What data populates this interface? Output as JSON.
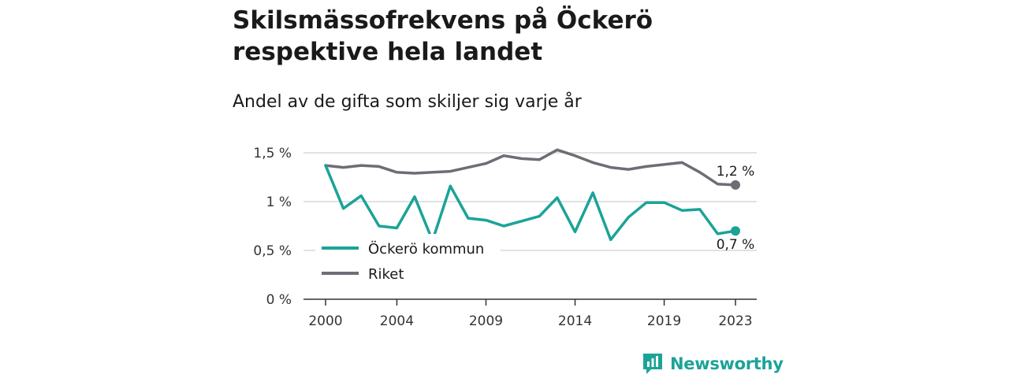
{
  "header": {
    "title": "Skilsmässofrekvens på Öckerö respektive hela landet",
    "subtitle": "Andel av de gifta som skiljer sig varje år"
  },
  "brand": {
    "name": "Newsworthy",
    "color": "#1ba398",
    "icon": "newsworthy-logo-icon"
  },
  "chart_data": {
    "type": "line",
    "title": "Skilsmässofrekvens på Öckerö respektive hela landet",
    "subtitle": "Andel av de gifta som skiljer sig varje år",
    "x": [
      2000,
      2001,
      2002,
      2003,
      2004,
      2005,
      2006,
      2007,
      2008,
      2009,
      2010,
      2011,
      2012,
      2013,
      2014,
      2015,
      2016,
      2017,
      2018,
      2019,
      2020,
      2021,
      2022,
      2023
    ],
    "x_ticks": [
      2000,
      2004,
      2009,
      2014,
      2019,
      2023
    ],
    "x_tick_labels": [
      "2000",
      "2004",
      "2009",
      "2014",
      "2019",
      "2023"
    ],
    "y_ticks": [
      0,
      0.5,
      1,
      1.5
    ],
    "y_tick_labels": [
      "0 %",
      "0,5 %",
      "1 %",
      "1,5 %"
    ],
    "ylim": [
      0,
      1.5
    ],
    "grid": true,
    "legend": "inside-lower-left",
    "series": [
      {
        "name": "Öckerö kommun",
        "color": "#1ba398",
        "values": [
          1.37,
          0.93,
          1.06,
          0.75,
          0.73,
          1.05,
          0.6,
          1.16,
          0.83,
          0.81,
          0.75,
          0.8,
          0.85,
          1.04,
          0.69,
          1.09,
          0.61,
          0.84,
          0.99,
          0.99,
          0.91,
          0.92,
          0.67,
          0.7
        ],
        "end_label": "0,7 %"
      },
      {
        "name": "Riket",
        "color": "#6e6d75",
        "values": [
          1.37,
          1.35,
          1.37,
          1.36,
          1.3,
          1.29,
          1.3,
          1.31,
          1.35,
          1.39,
          1.47,
          1.44,
          1.43,
          1.53,
          1.47,
          1.4,
          1.35,
          1.33,
          1.36,
          1.38,
          1.4,
          1.3,
          1.18,
          1.17
        ],
        "end_label": "1,2 %"
      }
    ]
  }
}
